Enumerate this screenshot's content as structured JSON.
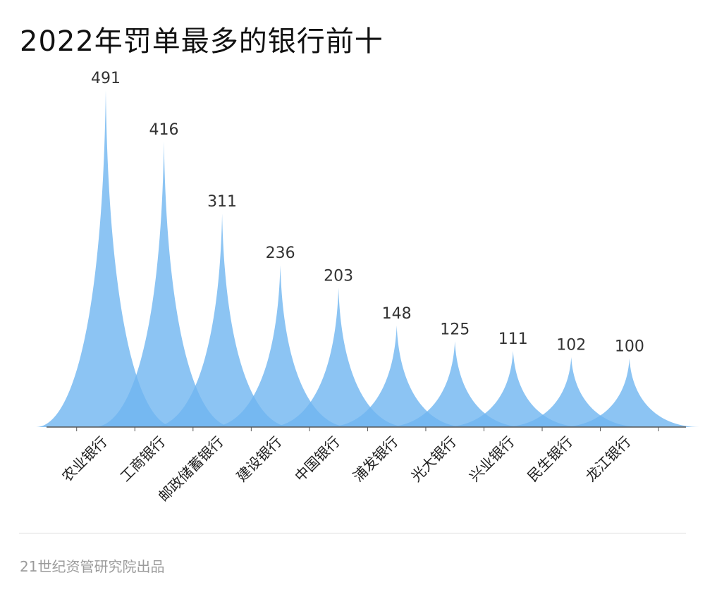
{
  "title": "2022年罚单最多的银行前十",
  "footer": "21世纪资管研究院出品",
  "chart_data": {
    "type": "area",
    "title": "2022年罚单最多的银行前十",
    "categories": [
      "农业银行",
      "工商银行",
      "邮政储蓄银行",
      "建设银行",
      "中国银行",
      "浦发银行",
      "光大银行",
      "兴业银行",
      "民生银行",
      "龙江银行"
    ],
    "values": [
      491,
      416,
      311,
      236,
      203,
      148,
      125,
      111,
      102,
      100
    ],
    "data_labels": [
      "491",
      "416",
      "311",
      "236",
      "203",
      "148",
      "125",
      "111",
      "102",
      "100"
    ],
    "ylim": [
      0,
      491
    ],
    "grid": false,
    "legend": "none",
    "colors": {
      "fill": "#6fb5f0",
      "axis": "#555555",
      "label": "#333333",
      "tick_label": "#222222"
    }
  }
}
